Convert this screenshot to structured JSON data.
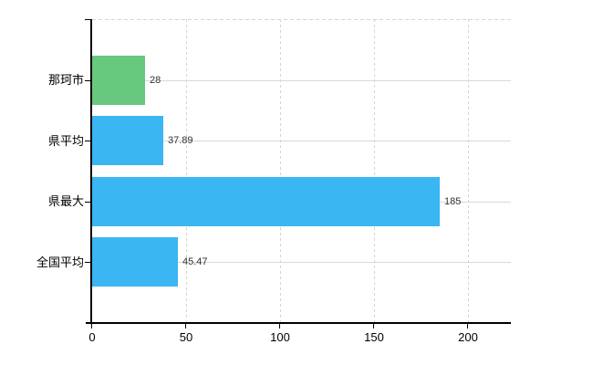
{
  "chart_data": {
    "type": "bar",
    "orientation": "horizontal",
    "title": "",
    "xlabel": "",
    "ylabel": "",
    "categories": [
      "那珂市",
      "県平均",
      "県最大",
      "全国平均"
    ],
    "values": [
      28,
      37.89,
      185,
      45.47
    ],
    "value_labels": [
      "28",
      "37.89",
      "185",
      "45.47"
    ],
    "bar_colors": [
      "#69c880",
      "#3ab6f2",
      "#3ab6f2",
      "#3ab6f2"
    ],
    "x_ticks": [
      0,
      50,
      100,
      150,
      200
    ],
    "x_tick_labels": [
      "0",
      "50",
      "100",
      "150",
      "200"
    ],
    "xlim": [
      0,
      222.8
    ],
    "grid": true,
    "legend": false,
    "colors": {
      "axis": "#000000",
      "grid_solid": "#d9d9d9",
      "grid_dashed": "#d4d4d4",
      "value_text": "#333333",
      "tick_text": "#000000",
      "background": "#ffffff"
    }
  }
}
